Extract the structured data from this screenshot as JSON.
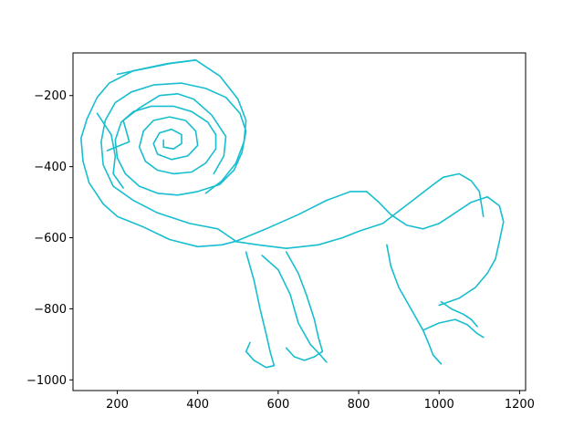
{
  "chart_data": {
    "type": "line",
    "title": "",
    "xlabel": "",
    "ylabel": "",
    "xlim": [
      90,
      1215
    ],
    "ylim": [
      -1030,
      -80
    ],
    "x_ticks": [
      200,
      400,
      600,
      800,
      1000,
      1200
    ],
    "y_ticks": [
      -200,
      -400,
      -600,
      -800,
      -1000
    ],
    "x_tick_labels": [
      "200",
      "400",
      "600",
      "800",
      "1000",
      "1200"
    ],
    "y_tick_labels": [
      "−200",
      "−400",
      "−600",
      "−800",
      "−1000"
    ],
    "grid": false,
    "color": "#17becf",
    "series": [
      {
        "points": [
          [
            395,
            -100
          ],
          [
            325,
            -110
          ],
          [
            240,
            -130
          ],
          [
            180,
            -165
          ],
          [
            150,
            -205
          ],
          [
            125,
            -265
          ],
          [
            110,
            -320
          ],
          [
            115,
            -385
          ],
          [
            130,
            -445
          ],
          [
            165,
            -505
          ],
          [
            200,
            -540
          ],
          [
            265,
            -570
          ],
          [
            330,
            -605
          ],
          [
            400,
            -625
          ],
          [
            460,
            -620
          ],
          [
            495,
            -610
          ],
          [
            450,
            -575
          ],
          [
            380,
            -560
          ],
          [
            300,
            -530
          ],
          [
            240,
            -495
          ],
          [
            190,
            -455
          ],
          [
            165,
            -395
          ],
          [
            160,
            -330
          ],
          [
            170,
            -270
          ],
          [
            195,
            -220
          ],
          [
            235,
            -190
          ],
          [
            290,
            -170
          ],
          [
            360,
            -165
          ],
          [
            420,
            -180
          ],
          [
            470,
            -205
          ],
          [
            505,
            -250
          ],
          [
            520,
            -300
          ],
          [
            510,
            -360
          ],
          [
            490,
            -410
          ],
          [
            455,
            -450
          ],
          [
            400,
            -470
          ],
          [
            350,
            -480
          ],
          [
            300,
            -475
          ],
          [
            255,
            -455
          ],
          [
            220,
            -420
          ],
          [
            200,
            -375
          ],
          [
            195,
            -325
          ],
          [
            210,
            -275
          ],
          [
            240,
            -245
          ],
          [
            285,
            -230
          ],
          [
            340,
            -230
          ],
          [
            385,
            -245
          ],
          [
            425,
            -275
          ],
          [
            445,
            -310
          ],
          [
            445,
            -350
          ],
          [
            420,
            -390
          ],
          [
            385,
            -415
          ],
          [
            340,
            -420
          ],
          [
            300,
            -410
          ],
          [
            270,
            -385
          ],
          [
            255,
            -345
          ],
          [
            265,
            -300
          ],
          [
            290,
            -270
          ],
          [
            330,
            -260
          ],
          [
            370,
            -270
          ],
          [
            395,
            -300
          ],
          [
            400,
            -340
          ],
          [
            375,
            -370
          ],
          [
            335,
            -380
          ],
          [
            300,
            -365
          ],
          [
            290,
            -335
          ],
          [
            305,
            -305
          ],
          [
            335,
            -295
          ],
          [
            360,
            -310
          ],
          [
            360,
            -335
          ],
          [
            340,
            -350
          ],
          [
            315,
            -345
          ],
          [
            315,
            -325
          ]
        ]
      },
      {
        "points": [
          [
            200,
            -140
          ],
          [
            330,
            -110
          ],
          [
            395,
            -100
          ],
          [
            455,
            -145
          ],
          [
            500,
            -210
          ],
          [
            520,
            -270
          ],
          [
            515,
            -330
          ],
          [
            495,
            -390
          ],
          [
            460,
            -440
          ],
          [
            420,
            -475
          ]
        ]
      },
      {
        "points": [
          [
            150,
            -250
          ],
          [
            185,
            -310
          ],
          [
            195,
            -370
          ],
          [
            190,
            -420
          ],
          [
            215,
            -460
          ]
        ]
      },
      {
        "points": [
          [
            175,
            -355
          ],
          [
            230,
            -330
          ],
          [
            215,
            -270
          ],
          [
            255,
            -235
          ],
          [
            305,
            -200
          ],
          [
            350,
            -195
          ],
          [
            390,
            -210
          ],
          [
            435,
            -255
          ],
          [
            470,
            -315
          ],
          [
            465,
            -370
          ],
          [
            440,
            -420
          ]
        ]
      },
      {
        "points": [
          [
            490,
            -610
          ],
          [
            550,
            -620
          ],
          [
            620,
            -630
          ],
          [
            700,
            -620
          ],
          [
            760,
            -600
          ],
          [
            805,
            -580
          ],
          [
            860,
            -560
          ],
          [
            900,
            -525
          ],
          [
            940,
            -490
          ],
          [
            980,
            -455
          ],
          [
            1010,
            -430
          ],
          [
            1050,
            -420
          ],
          [
            1080,
            -440
          ],
          [
            1100,
            -470
          ],
          [
            1105,
            -505
          ],
          [
            1110,
            -540
          ]
        ]
      },
      {
        "points": [
          [
            495,
            -610
          ],
          [
            570,
            -575
          ],
          [
            650,
            -535
          ],
          [
            720,
            -495
          ],
          [
            780,
            -470
          ],
          [
            820,
            -470
          ],
          [
            850,
            -500
          ],
          [
            880,
            -535
          ],
          [
            920,
            -565
          ],
          [
            960,
            -575
          ],
          [
            1000,
            -560
          ],
          [
            1040,
            -530
          ],
          [
            1080,
            -500
          ],
          [
            1120,
            -485
          ],
          [
            1150,
            -510
          ],
          [
            1160,
            -555
          ],
          [
            1150,
            -610
          ],
          [
            1140,
            -660
          ],
          [
            1120,
            -700
          ],
          [
            1090,
            -740
          ],
          [
            1050,
            -770
          ],
          [
            1000,
            -790
          ]
        ]
      },
      {
        "points": [
          [
            520,
            -640
          ],
          [
            540,
            -720
          ],
          [
            555,
            -800
          ],
          [
            570,
            -870
          ],
          [
            580,
            -920
          ],
          [
            590,
            -960
          ],
          [
            570,
            -965
          ],
          [
            540,
            -945
          ],
          [
            520,
            -920
          ],
          [
            530,
            -895
          ]
        ]
      },
      {
        "points": [
          [
            620,
            -640
          ],
          [
            650,
            -700
          ],
          [
            670,
            -760
          ],
          [
            690,
            -830
          ],
          [
            700,
            -880
          ],
          [
            710,
            -920
          ],
          [
            690,
            -935
          ],
          [
            665,
            -945
          ],
          [
            640,
            -935
          ],
          [
            620,
            -910
          ]
        ]
      },
      {
        "points": [
          [
            560,
            -650
          ],
          [
            600,
            -690
          ],
          [
            630,
            -760
          ],
          [
            650,
            -840
          ],
          [
            680,
            -900
          ],
          [
            705,
            -930
          ],
          [
            720,
            -950
          ]
        ]
      },
      {
        "points": [
          [
            870,
            -620
          ],
          [
            880,
            -680
          ],
          [
            900,
            -740
          ],
          [
            930,
            -800
          ],
          [
            960,
            -860
          ],
          [
            975,
            -900
          ],
          [
            985,
            -930
          ],
          [
            1005,
            -955
          ]
        ]
      },
      {
        "points": [
          [
            960,
            -860
          ],
          [
            1000,
            -840
          ],
          [
            1040,
            -830
          ],
          [
            1070,
            -845
          ],
          [
            1095,
            -870
          ],
          [
            1110,
            -880
          ]
        ]
      },
      {
        "points": [
          [
            1005,
            -780
          ],
          [
            1030,
            -800
          ],
          [
            1060,
            -815
          ],
          [
            1080,
            -830
          ],
          [
            1095,
            -850
          ]
        ]
      }
    ]
  }
}
